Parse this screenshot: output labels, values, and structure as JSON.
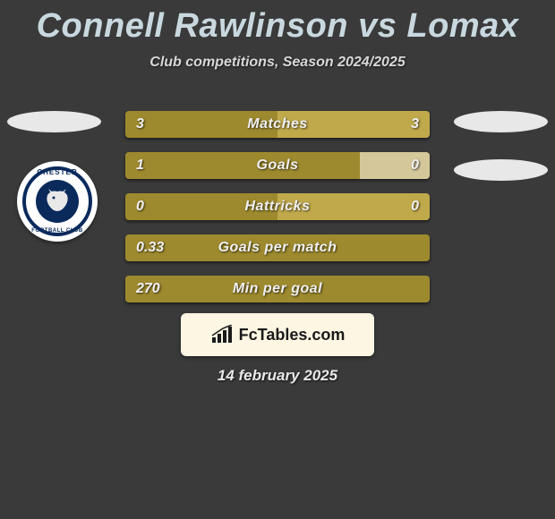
{
  "title": "Connell Rawlinson vs Lomax",
  "subtitle": "Club competitions, Season 2024/2025",
  "date": "14 february 2025",
  "colors": {
    "background": "#3a3a3a",
    "title": "#c9d8df",
    "text": "#e8e8e8",
    "bar_left": "#9e8a2e",
    "bar_right": "#c0a94b",
    "bar_right_pale": "#d4c89a",
    "logo_bg": "#fdf6e3",
    "crest_blue": "#0a2a5c",
    "ellipse": "#e8e8e8"
  },
  "crest": {
    "top_text": "CHESTER",
    "bottom_text": "FOOTBALL CLUB"
  },
  "logo": {
    "text_prefix": "Fc",
    "text_suffix": "Tables.com"
  },
  "bars": [
    {
      "label": "Matches",
      "left_value": "3",
      "right_value": "3",
      "left_pct": 50,
      "right_pct": 50,
      "left_color": "#9e8a2e",
      "right_color": "#c0a94b"
    },
    {
      "label": "Goals",
      "left_value": "1",
      "right_value": "0",
      "left_pct": 77,
      "right_pct": 23,
      "left_color": "#9e8a2e",
      "right_color": "#d4c89a"
    },
    {
      "label": "Hattricks",
      "left_value": "0",
      "right_value": "0",
      "left_pct": 50,
      "right_pct": 50,
      "left_color": "#9e8a2e",
      "right_color": "#c0a94b"
    },
    {
      "label": "Goals per match",
      "left_value": "0.33",
      "right_value": "",
      "left_pct": 100,
      "right_pct": 0,
      "left_color": "#9e8a2e",
      "right_color": "#c0a94b"
    },
    {
      "label": "Min per goal",
      "left_value": "270",
      "right_value": "",
      "left_pct": 100,
      "right_pct": 0,
      "left_color": "#9e8a2e",
      "right_color": "#c0a94b"
    }
  ]
}
